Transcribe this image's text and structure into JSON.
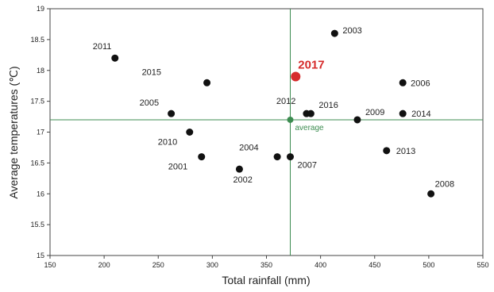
{
  "colors": {
    "point": "#111111",
    "highlight": "#d62b2b",
    "average": "#3c8c50",
    "frame": "#444444"
  },
  "chart_data": {
    "type": "scatter",
    "xlabel": "Total rainfall  (mm)",
    "ylabel": "Average temperatures (℃)",
    "xlim": [
      150,
      550
    ],
    "ylim": [
      15,
      19
    ],
    "xticks": [
      150,
      200,
      250,
      300,
      350,
      400,
      450,
      500,
      550
    ],
    "yticks": [
      15,
      15.5,
      16,
      16.5,
      17,
      17.5,
      18,
      18.5,
      19
    ],
    "grid": false,
    "points": [
      {
        "label": "2011",
        "x": 210,
        "y": 18.2
      },
      {
        "label": "2015",
        "x": 295,
        "y": 17.8
      },
      {
        "label": "2005",
        "x": 262,
        "y": 17.3
      },
      {
        "label": "2010",
        "x": 279,
        "y": 17.0
      },
      {
        "label": "2001",
        "x": 290,
        "y": 16.6
      },
      {
        "label": "2002",
        "x": 325,
        "y": 16.4
      },
      {
        "label": "2004",
        "x": 360,
        "y": 16.6
      },
      {
        "label": "2007",
        "x": 372,
        "y": 16.6
      },
      {
        "label": "2012",
        "x": 387,
        "y": 17.3
      },
      {
        "label": "2016",
        "x": 391,
        "y": 17.3
      },
      {
        "label": "2003",
        "x": 413,
        "y": 18.6
      },
      {
        "label": "2009",
        "x": 434,
        "y": 17.2
      },
      {
        "label": "2013",
        "x": 461,
        "y": 16.7
      },
      {
        "label": "2006",
        "x": 476,
        "y": 17.8
      },
      {
        "label": "2014",
        "x": 476,
        "y": 17.3
      },
      {
        "label": "2008",
        "x": 502,
        "y": 16.0
      }
    ],
    "highlight": {
      "label": "2017",
      "x": 377,
      "y": 17.9
    },
    "average": {
      "label": "average",
      "x": 372,
      "y": 17.2
    }
  }
}
